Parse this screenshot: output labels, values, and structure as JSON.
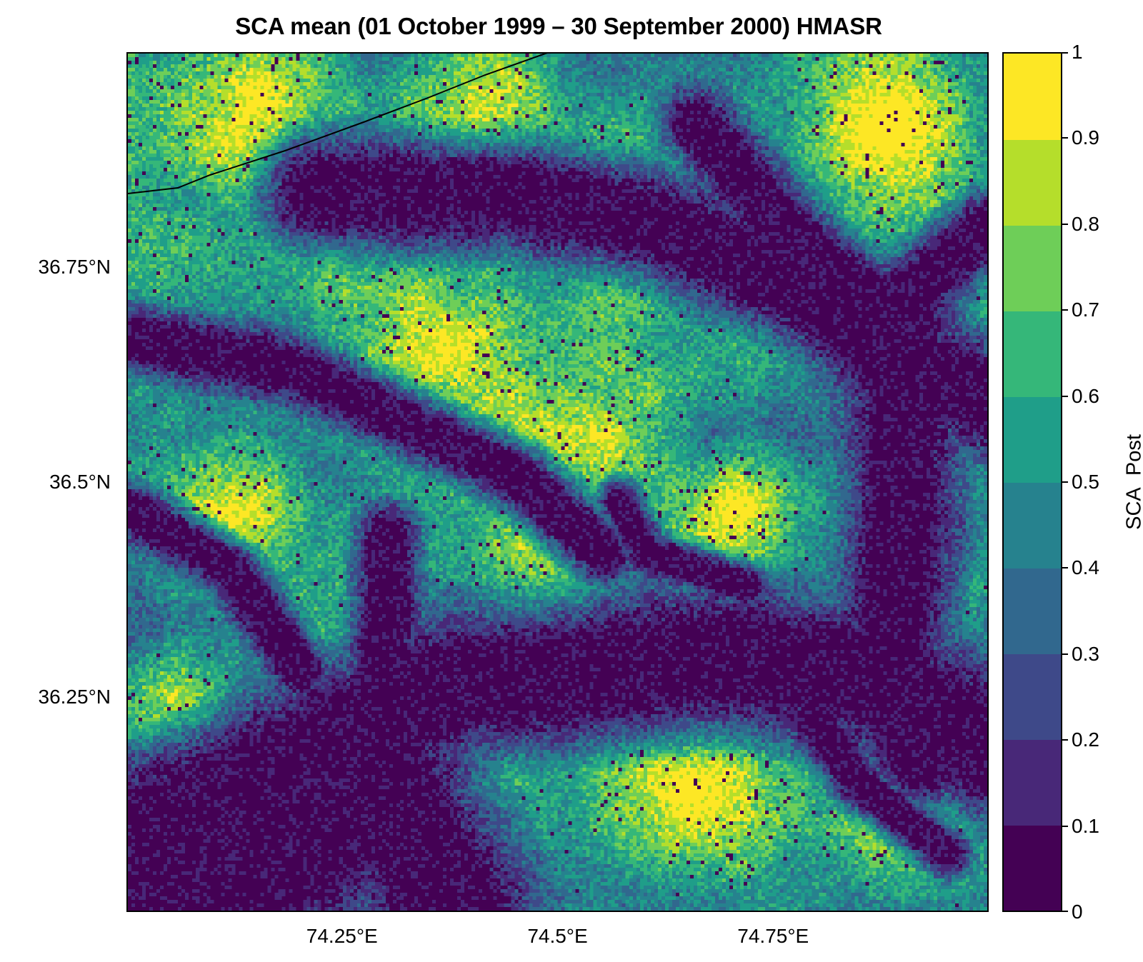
{
  "chart_data": {
    "type": "heatmap",
    "title": "SCA mean (01 October 1999 – 30 September 2000) HMASR",
    "xlabel": "",
    "ylabel": "",
    "x_ticks": [
      {
        "value": 74.25,
        "label": "74.25°E"
      },
      {
        "value": 74.5,
        "label": "74.5°E"
      },
      {
        "value": 74.75,
        "label": "74.75°E"
      }
    ],
    "y_ticks": [
      {
        "value": 36.75,
        "label": "36.75°N"
      },
      {
        "value": 36.5,
        "label": "36.5°N"
      },
      {
        "value": 36.25,
        "label": "36.25°N"
      }
    ],
    "xlim": [
      74.0,
      75.0
    ],
    "ylim": [
      36.0,
      37.0
    ],
    "colorbar": {
      "label": "SCA_Post",
      "ticks": [
        "0",
        "0.1",
        "0.2",
        "0.3",
        "0.4",
        "0.5",
        "0.6",
        "0.7",
        "0.8",
        "0.9",
        "1"
      ],
      "levels": [
        0,
        0.1,
        0.2,
        0.3,
        0.4,
        0.5,
        0.6,
        0.7,
        0.8,
        0.9,
        1.0
      ],
      "colors": [
        "#440154",
        "#482878",
        "#3e4989",
        "#31688e",
        "#26828e",
        "#1f9e89",
        "#35b779",
        "#6ece58",
        "#b5de2b",
        "#fde725"
      ]
    },
    "colormap": "viridis",
    "grid": false,
    "data_description": "Gridded mean snow-covered-area fraction field; low values (0–0.1) along river valleys, high values (0.8–1) on mountain ridges"
  }
}
